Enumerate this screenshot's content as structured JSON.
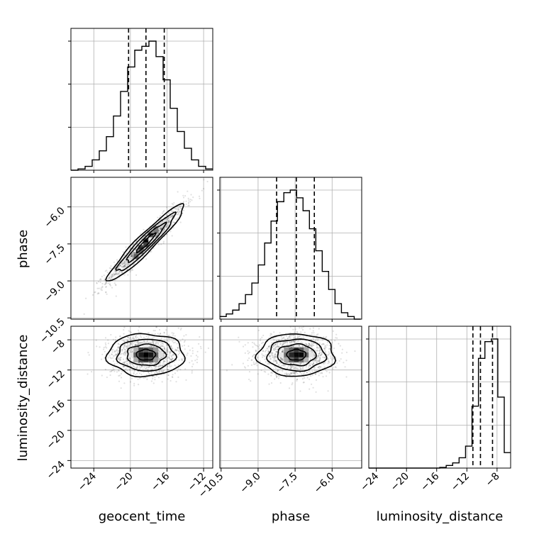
{
  "chart_data": {
    "type": "corner",
    "parameters": [
      "geocent_time",
      "phase",
      "luminosity_distance"
    ],
    "axis_labels": {
      "x": [
        "geocent_time",
        "phase",
        "luminosity_distance"
      ],
      "y": [
        "phase",
        "luminosity_distance"
      ]
    },
    "ranges": {
      "geocent_time": [
        -26.5,
        -11.0
      ],
      "phase": [
        -10.55,
        -4.8
      ],
      "luminosity_distance": [
        -25.0,
        -6.2
      ]
    },
    "ticks": {
      "geocent_time": [
        -24,
        -20,
        -16,
        -12
      ],
      "phase": [
        -10.5,
        -9.0,
        -7.5,
        -6.0
      ],
      "luminosity_distance": [
        -24,
        -20,
        -16,
        -12,
        -8
      ]
    },
    "tick_labels": {
      "geocent_time": [
        "−24",
        "−20",
        "−16",
        "−12"
      ],
      "phase": [
        "−10.5",
        "−9.0",
        "−7.5",
        "−6.0"
      ],
      "luminosity_distance": [
        "−24",
        "−20",
        "−16",
        "−12",
        "−8"
      ]
    },
    "diagonal": [
      {
        "param": "geocent_time",
        "bin_edges": [
          -26.5,
          -25.725,
          -24.95,
          -24.175,
          -23.4,
          -22.625,
          -21.85,
          -21.075,
          -20.3,
          -19.525,
          -18.75,
          -17.975,
          -17.2,
          -16.425,
          -15.65,
          -14.875,
          -14.1,
          -13.325,
          -12.55,
          -11.775,
          -11.0
        ],
        "counts": [
          0.0,
          0.01,
          0.03,
          0.08,
          0.15,
          0.26,
          0.42,
          0.61,
          0.8,
          0.93,
          0.96,
          1.0,
          0.88,
          0.7,
          0.48,
          0.3,
          0.17,
          0.08,
          0.03,
          0.01
        ],
        "quantiles": [
          -20.2,
          -18.3,
          -16.3
        ]
      },
      {
        "param": "phase",
        "bin_edges": [
          -10.55,
          -10.2906,
          -10.0313,
          -9.7719,
          -9.5125,
          -9.2531,
          -8.9938,
          -8.7344,
          -8.475,
          -8.2156,
          -7.9563,
          -7.6969,
          -7.4375,
          -7.1781,
          -6.9188,
          -6.6594,
          -6.4,
          -6.1406,
          -5.8813,
          -5.6219,
          -5.3625,
          -5.1031,
          -4.8438
        ],
        "counts": [
          0.02,
          0.04,
          0.07,
          0.12,
          0.19,
          0.28,
          0.42,
          0.59,
          0.76,
          0.91,
          0.98,
          1.0,
          0.94,
          0.84,
          0.7,
          0.53,
          0.37,
          0.23,
          0.12,
          0.05,
          0.02,
          0.0
        ],
        "quantiles": [
          -8.25,
          -7.45,
          -6.72
        ]
      },
      {
        "param": "luminosity_distance",
        "bin_edges": [
          -25.0,
          -24.145,
          -23.29,
          -22.435,
          -21.58,
          -20.725,
          -19.87,
          -19.015,
          -18.16,
          -17.305,
          -16.45,
          -15.595,
          -14.74,
          -13.885,
          -13.03,
          -12.175,
          -11.32,
          -10.465,
          -9.61,
          -8.755,
          -7.9,
          -7.045,
          -6.19
        ],
        "counts": [
          0,
          0,
          0,
          0,
          0,
          0,
          0,
          0,
          0,
          0,
          0.0,
          0.005,
          0.02,
          0.04,
          0.08,
          0.17,
          0.48,
          0.85,
          0.98,
          1.0,
          0.55,
          0.12
        ],
        "quantiles": [
          -11.2,
          -10.2,
          -8.6
        ]
      }
    ],
    "scatter_2d": [
      {
        "x_param": "geocent_time",
        "y_param": "phase",
        "center": [
          -18.3,
          -7.45
        ],
        "sx": 2.1,
        "sy": 0.78,
        "rho": 0.95,
        "n_points": 1300
      },
      {
        "x_param": "geocent_time",
        "y_param": "luminosity_distance",
        "center": [
          -18.3,
          -10.0
        ],
        "sx": 2.1,
        "sy": 1.4,
        "rho": 0.0,
        "n_points": 1300
      },
      {
        "x_param": "phase",
        "y_param": "luminosity_distance",
        "center": [
          -7.45,
          -10.0
        ],
        "sx": 0.78,
        "sy": 1.4,
        "rho": 0.0,
        "n_points": 1300
      }
    ],
    "contour_levels_sigma": [
      0.5,
      1.0,
      1.5,
      2.0
    ],
    "grid": true
  }
}
